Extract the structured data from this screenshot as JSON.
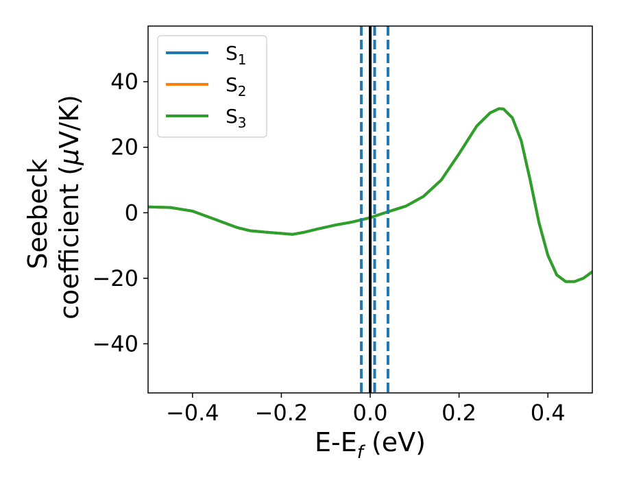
{
  "chart_data": {
    "type": "line",
    "xlabel": {
      "main": "E-E",
      "sub": "f",
      "suffix": " (eV)"
    },
    "ylabel": {
      "line1": "Seebeck",
      "line2_prefix": "coefficient  (",
      "mu": "μ",
      "line2_suffix": "V/K)"
    },
    "xlim": [
      -0.5,
      0.5
    ],
    "ylim": [
      -55,
      57
    ],
    "xticks": [
      -0.4,
      -0.2,
      0.0,
      0.2,
      0.4
    ],
    "xtick_labels": [
      "−0.4",
      "−0.2",
      "0.0",
      "0.2",
      "0.4"
    ],
    "yticks": [
      -40,
      -20,
      0,
      20,
      40
    ],
    "ytick_labels": [
      "−40",
      "−20",
      "0",
      "20",
      "40"
    ],
    "grid": false,
    "legend_position": "top-left",
    "legend": [
      {
        "main": "S",
        "sub": "1",
        "color": "#1f77b4"
      },
      {
        "main": "S",
        "sub": "2",
        "color": "#ff7f0e"
      },
      {
        "main": "S",
        "sub": "3",
        "color": "#2ca02c"
      }
    ],
    "x": [
      -0.5,
      -0.45,
      -0.4,
      -0.35,
      -0.3,
      -0.27,
      -0.23,
      -0.2,
      -0.175,
      -0.15,
      -0.12,
      -0.08,
      -0.04,
      0.0,
      0.04,
      0.08,
      0.12,
      0.16,
      0.2,
      0.24,
      0.27,
      0.29,
      0.3,
      0.32,
      0.34,
      0.36,
      0.38,
      0.4,
      0.42,
      0.44,
      0.46,
      0.48,
      0.5
    ],
    "series": [
      {
        "name": "S1",
        "color": "#1f77b4",
        "values": [
          1.8,
          1.6,
          0.5,
          -2.0,
          -4.5,
          -5.5,
          -6.0,
          -6.3,
          -6.6,
          -6.0,
          -5.0,
          -3.8,
          -2.8,
          -1.5,
          0.3,
          2.0,
          5.0,
          10.0,
          18.0,
          26.5,
          30.5,
          31.8,
          31.7,
          29.0,
          22.0,
          10.0,
          -3.0,
          -13.0,
          -19.0,
          -21.0,
          -21.0,
          -20.0,
          -18.0
        ]
      },
      {
        "name": "S2",
        "color": "#ff7f0e",
        "values": [
          1.8,
          1.6,
          0.5,
          -2.0,
          -4.5,
          -5.5,
          -6.0,
          -6.3,
          -6.6,
          -6.0,
          -5.0,
          -3.8,
          -2.8,
          -1.5,
          0.3,
          2.0,
          5.0,
          10.0,
          18.0,
          26.5,
          30.5,
          31.8,
          31.7,
          29.0,
          22.0,
          10.0,
          -3.0,
          -13.0,
          -19.0,
          -21.0,
          -21.0,
          -20.0,
          -18.0
        ]
      },
      {
        "name": "S3",
        "color": "#2ca02c",
        "values": [
          1.8,
          1.6,
          0.5,
          -2.0,
          -4.5,
          -5.5,
          -6.0,
          -6.3,
          -6.6,
          -6.0,
          -5.0,
          -3.8,
          -2.8,
          -1.5,
          0.3,
          2.0,
          5.0,
          10.0,
          18.0,
          26.5,
          30.5,
          31.8,
          31.7,
          29.0,
          22.0,
          10.0,
          -3.0,
          -13.0,
          -19.0,
          -21.0,
          -21.0,
          -20.0,
          -18.0
        ]
      }
    ],
    "vlines": [
      {
        "x": -0.02,
        "color": "#1f77b4",
        "style": "dashed"
      },
      {
        "x": 0.01,
        "color": "#1f77b4",
        "style": "dashed"
      },
      {
        "x": 0.04,
        "color": "#1f77b4",
        "style": "dashed"
      },
      {
        "x": 0.0,
        "color": "#000000",
        "style": "solid"
      }
    ]
  }
}
